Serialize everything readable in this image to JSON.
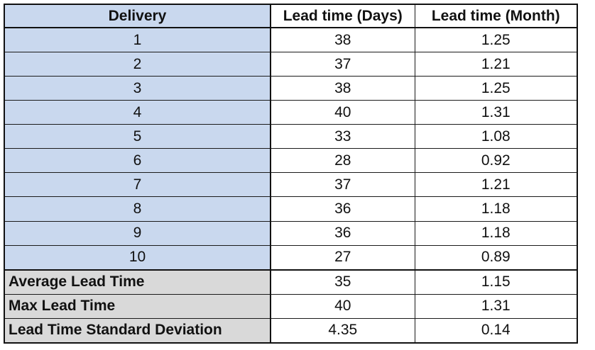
{
  "headers": [
    "Delivery",
    "Lead time (Days)",
    "Lead time (Month)"
  ],
  "rows": [
    {
      "delivery": "1",
      "days": "38",
      "months": "1.25"
    },
    {
      "delivery": "2",
      "days": "37",
      "months": "1.21"
    },
    {
      "delivery": "3",
      "days": "38",
      "months": "1.25"
    },
    {
      "delivery": "4",
      "days": "40",
      "months": "1.31"
    },
    {
      "delivery": "5",
      "days": "33",
      "months": "1.08"
    },
    {
      "delivery": "6",
      "days": "28",
      "months": "0.92"
    },
    {
      "delivery": "7",
      "days": "37",
      "months": "1.21"
    },
    {
      "delivery": "8",
      "days": "36",
      "months": "1.18"
    },
    {
      "delivery": "9",
      "days": "36",
      "months": "1.18"
    },
    {
      "delivery": "10",
      "days": "27",
      "months": "0.89"
    }
  ],
  "summary": [
    {
      "label": "Average Lead Time",
      "days": "35",
      "months": "1.15"
    },
    {
      "label": "Max Lead Time",
      "days": "40",
      "months": "1.31"
    },
    {
      "label": "Lead Time Standard Deviation",
      "days": "4.35",
      "months": "0.14"
    }
  ],
  "colors": {
    "delivery_fill": "#c9d8ee",
    "summary_fill": "#d9d9d9",
    "border": "#111111"
  }
}
